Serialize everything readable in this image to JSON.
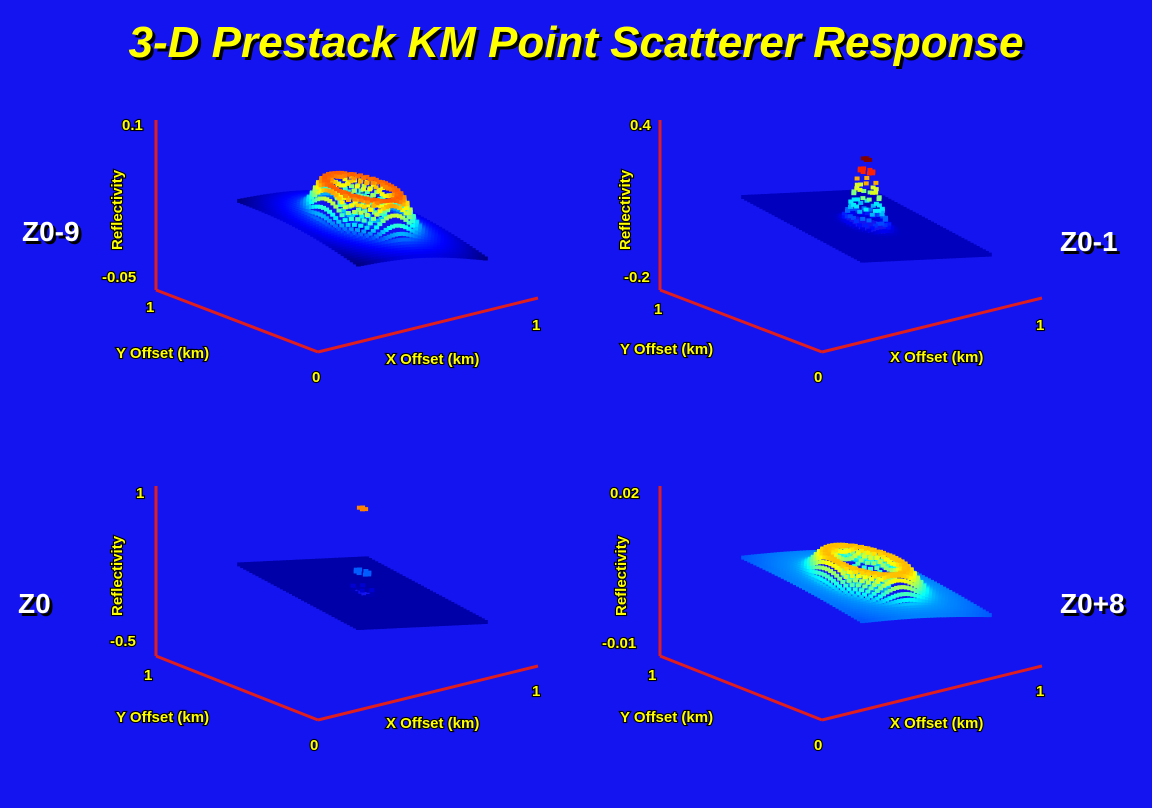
{
  "title": "3-D Prestack KM Point Scatterer Response",
  "panels": [
    {
      "label": "Z0-9",
      "zmax": "0.1",
      "zmin": "-0.05",
      "zlabel": "Reflectivity",
      "xlabel": "X Offset (km)",
      "ylabel": "Y Offset (km)",
      "x0": "0",
      "x1": "1",
      "y1": "1",
      "shape": "ring-high"
    },
    {
      "label": "Z0-1",
      "zmax": "0.4",
      "zmin": "-0.2",
      "zlabel": "Reflectivity",
      "xlabel": "X Offset (km)",
      "ylabel": "Y Offset (km)",
      "x0": "0",
      "x1": "1",
      "y1": "1",
      "shape": "peak-wide"
    },
    {
      "label": "Z0",
      "zmax": "1",
      "zmin": "-0.5",
      "zlabel": "Reflectivity",
      "xlabel": "X Offset (km)",
      "ylabel": "Y Offset (km)",
      "x0": "0",
      "x1": "1",
      "y1": "1",
      "shape": "spike"
    },
    {
      "label": "Z0+8",
      "zmax": "0.02",
      "zmin": "-0.01",
      "zlabel": "Reflectivity",
      "xlabel": "X Offset (km)",
      "ylabel": "Y Offset (km)",
      "x0": "0",
      "x1": "1",
      "y1": "1",
      "shape": "ring-low"
    }
  ],
  "colors": {
    "background": "#1414f0",
    "axis": "#e01e1e",
    "text": "#ffff00",
    "label": "#ffffff"
  }
}
